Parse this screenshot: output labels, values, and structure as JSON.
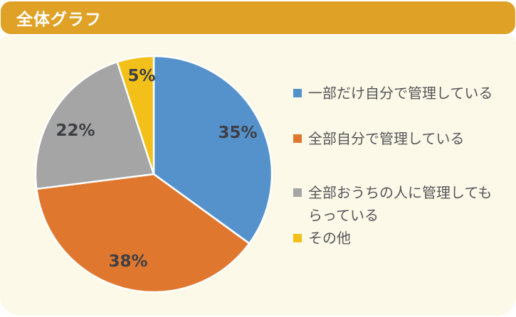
{
  "header": {
    "title": "全体グラフ"
  },
  "chart_data": {
    "type": "pie",
    "title": "全体グラフ",
    "categories": [
      "一部だけ自分で管理している",
      "全部自分で管理している",
      "全部おうちの人に管理してもらっている",
      "その他"
    ],
    "values": [
      35,
      38,
      22,
      5
    ],
    "data_labels": [
      "35%",
      "38%",
      "22%",
      "5%"
    ],
    "colors": [
      "#5592CB",
      "#E0772F",
      "#A5A5A5",
      "#F2C018"
    ],
    "start_angle_deg": 0,
    "direction": "clockwise",
    "legend_position": "right",
    "data_label_placement": "inside",
    "separator_color": "#FFFFFF"
  },
  "colors": {
    "header_bg": "#E0A226",
    "card_bg": "#FDF9E8",
    "page_bg": "#FFFFFF",
    "title_text": "#FFFFFF",
    "data_label_text": "#3F4045",
    "legend_text": "#55565A"
  }
}
